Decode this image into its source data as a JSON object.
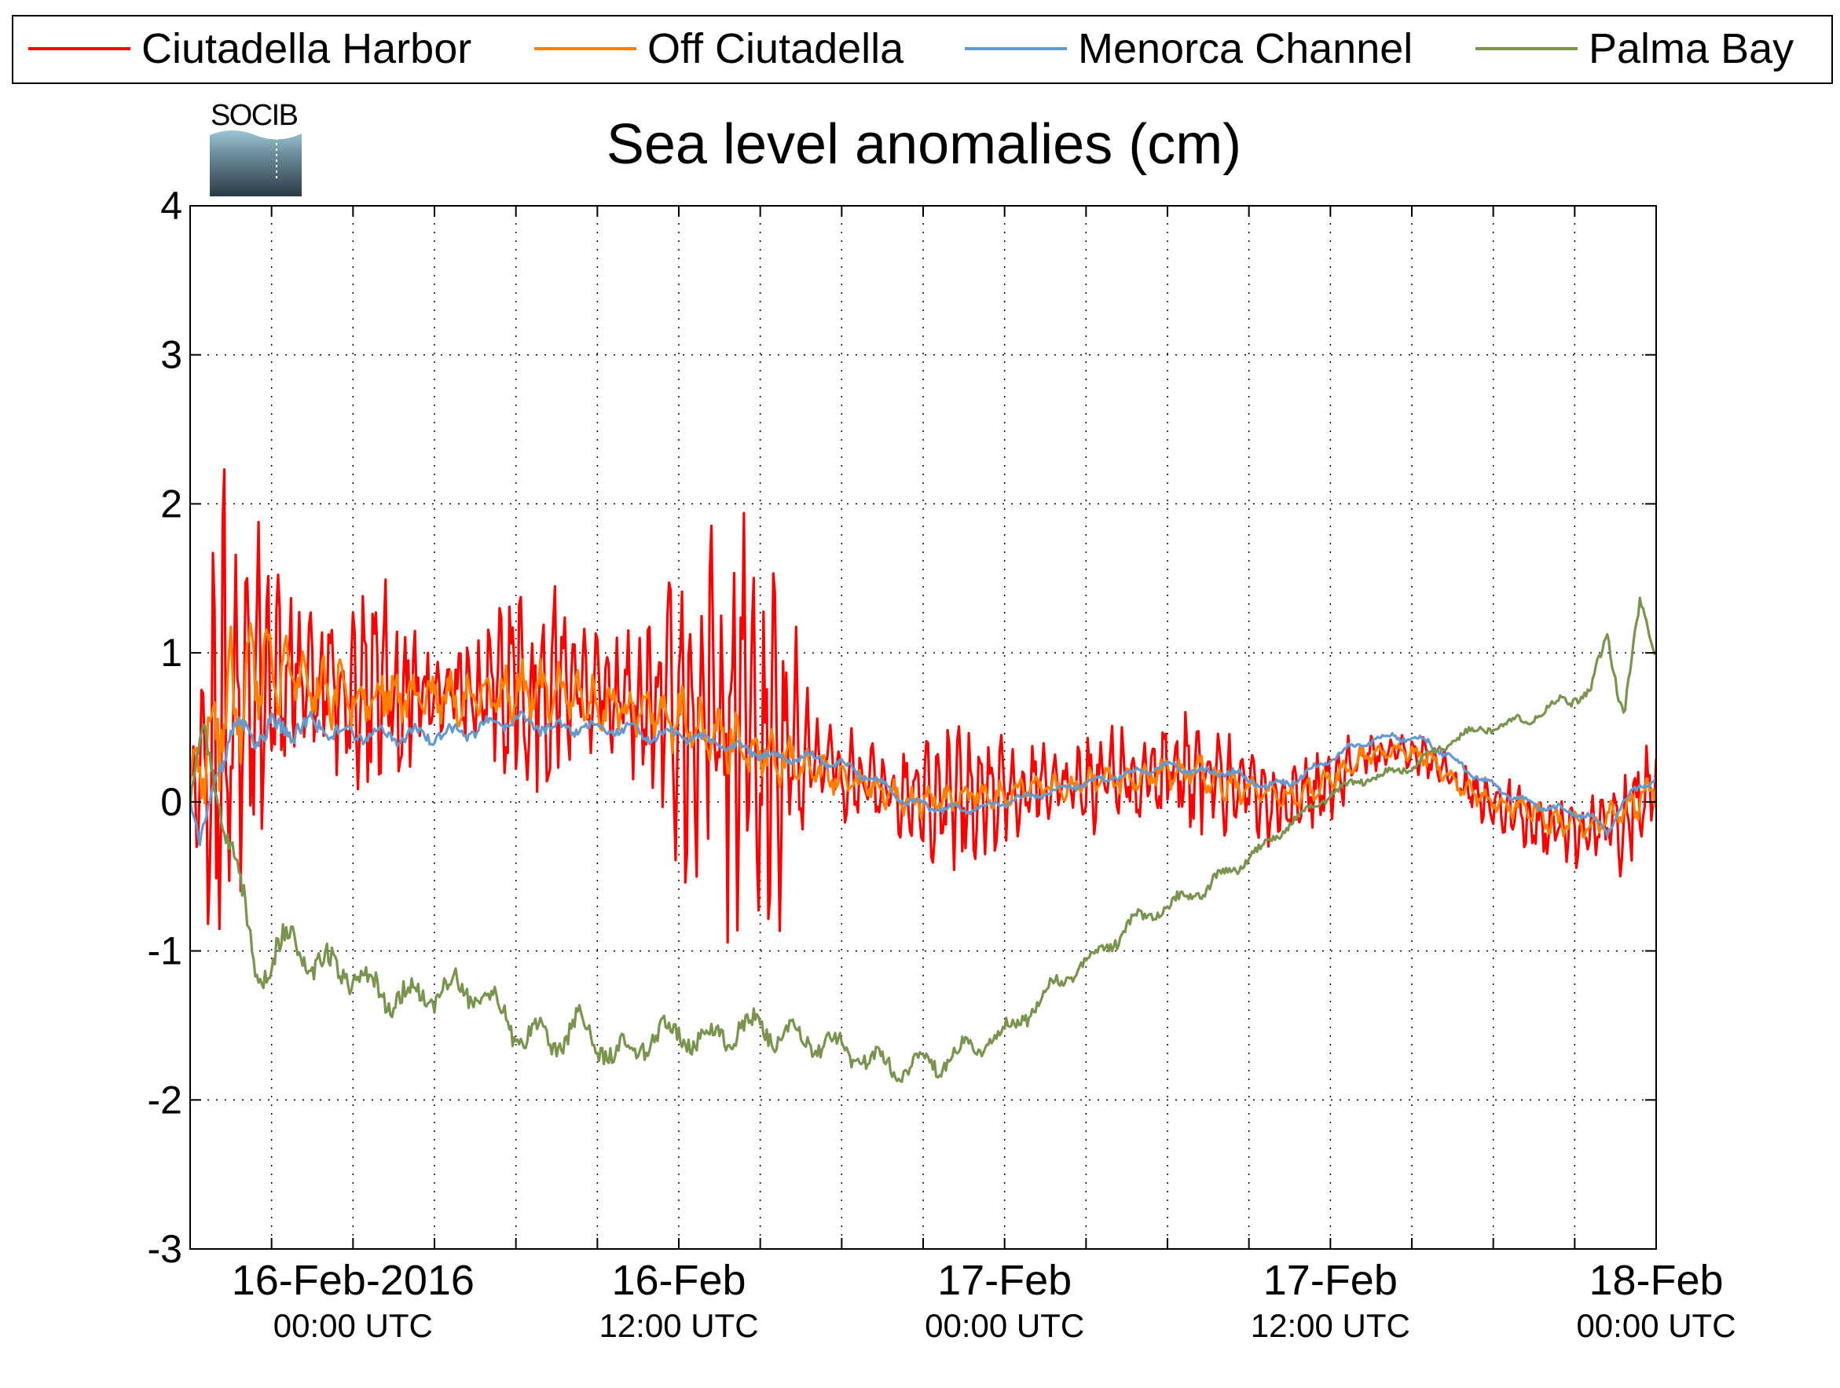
{
  "chart_data": {
    "type": "line",
    "title": "Sea level anomalies (cm)",
    "logo_text": "SOCIB",
    "xlabel": "",
    "ylabel": "",
    "ylim": [
      -3,
      4
    ],
    "y_ticks": [
      -3,
      -2,
      -1,
      0,
      1,
      2,
      3,
      4
    ],
    "y_tick_labels": [
      "-3",
      "-2",
      "-1",
      "0",
      "1",
      "2",
      "3",
      "4"
    ],
    "x_range_hours": [
      -5,
      35
    ],
    "x_ticks": [
      {
        "hour": 0,
        "date": "16-Feb-2016",
        "time": "00:00 UTC"
      },
      {
        "hour": 10,
        "date": "16-Feb",
        "time": "12:00 UTC"
      },
      {
        "hour": 20,
        "date": "17-Feb",
        "time": "00:00 UTC"
      },
      {
        "hour": 30,
        "date": "17-Feb",
        "time": "12:00 UTC"
      },
      {
        "hour": 40,
        "date": "18-Feb",
        "time": "00:00 UTC"
      }
    ],
    "grid": true,
    "legend_position": "top",
    "series": [
      {
        "name": "Ciutadella Harbor",
        "color": "#ff0000",
        "mean": [
          [
            -5,
            0.1
          ],
          [
            -4,
            0.5
          ],
          [
            -3,
            0.85
          ],
          [
            -2,
            0.9
          ],
          [
            -1,
            0.8
          ],
          [
            0,
            0.75
          ],
          [
            1,
            0.75
          ],
          [
            2,
            0.7
          ],
          [
            3,
            0.75
          ],
          [
            4,
            0.7
          ],
          [
            5,
            0.8
          ],
          [
            6,
            0.85
          ],
          [
            7,
            0.75
          ],
          [
            8,
            0.7
          ],
          [
            9,
            0.55
          ],
          [
            10,
            0.6
          ],
          [
            11,
            0.55
          ],
          [
            12,
            0.45
          ],
          [
            13,
            0.35
          ],
          [
            14,
            0.3
          ],
          [
            15,
            0.2
          ],
          [
            16,
            0.1
          ],
          [
            17,
            0.05
          ],
          [
            18,
            0.0
          ],
          [
            19,
            0.05
          ],
          [
            20,
            0.1
          ],
          [
            21,
            0.1
          ],
          [
            22,
            0.1
          ],
          [
            23,
            0.15
          ],
          [
            24,
            0.15
          ],
          [
            25,
            0.2
          ],
          [
            26,
            0.2
          ],
          [
            27,
            0.1
          ],
          [
            28,
            0.0
          ],
          [
            29,
            0.0
          ],
          [
            30,
            0.15
          ],
          [
            31,
            0.3
          ],
          [
            32,
            0.35
          ],
          [
            33,
            0.3
          ],
          [
            34,
            0.1
          ],
          [
            35,
            0.0
          ],
          [
            36,
            -0.1
          ],
          [
            37,
            -0.2
          ],
          [
            38,
            -0.2
          ],
          [
            39,
            -0.1
          ],
          [
            40,
            0.1
          ]
        ],
        "amplitude": [
          [
            -5,
            0.3
          ],
          [
            -4,
            1.9
          ],
          [
            -3,
            1.2
          ],
          [
            -2,
            0.9
          ],
          [
            -1,
            0.5
          ],
          [
            0,
            0.7
          ],
          [
            1,
            1.0
          ],
          [
            2,
            0.5
          ],
          [
            3,
            0.4
          ],
          [
            4,
            0.5
          ],
          [
            5,
            0.9
          ],
          [
            6,
            0.9
          ],
          [
            7,
            0.45
          ],
          [
            8,
            0.4
          ],
          [
            9,
            0.7
          ],
          [
            10,
            1.3
          ],
          [
            11,
            1.4
          ],
          [
            12,
            1.7
          ],
          [
            13,
            1.6
          ],
          [
            14,
            0.6
          ],
          [
            15,
            0.35
          ],
          [
            16,
            0.3
          ],
          [
            17,
            0.35
          ],
          [
            18,
            0.5
          ],
          [
            19,
            0.5
          ],
          [
            20,
            0.45
          ],
          [
            21,
            0.3
          ],
          [
            22,
            0.35
          ],
          [
            23,
            0.4
          ],
          [
            24,
            0.35
          ],
          [
            25,
            0.4
          ],
          [
            26,
            0.45
          ],
          [
            27,
            0.35
          ],
          [
            28,
            0.3
          ],
          [
            29,
            0.3
          ],
          [
            30,
            0.3
          ],
          [
            31,
            0.15
          ],
          [
            32,
            0.1
          ],
          [
            33,
            0.15
          ],
          [
            34,
            0.15
          ],
          [
            35,
            0.2
          ],
          [
            36,
            0.25
          ],
          [
            37,
            0.25
          ],
          [
            38,
            0.3
          ],
          [
            39,
            0.4
          ],
          [
            40,
            0.4
          ]
        ]
      },
      {
        "name": "Off Ciutadella",
        "color": "#ff7f00",
        "mean": [
          [
            -5,
            0.1
          ],
          [
            -4,
            0.6
          ],
          [
            -3,
            0.85
          ],
          [
            -2,
            0.85
          ],
          [
            -1,
            0.75
          ],
          [
            0,
            0.7
          ],
          [
            1,
            0.75
          ],
          [
            2,
            0.7
          ],
          [
            3,
            0.7
          ],
          [
            4,
            0.7
          ],
          [
            5,
            0.75
          ],
          [
            6,
            0.75
          ],
          [
            7,
            0.7
          ],
          [
            8,
            0.65
          ],
          [
            9,
            0.6
          ],
          [
            10,
            0.55
          ],
          [
            11,
            0.45
          ],
          [
            12,
            0.35
          ],
          [
            13,
            0.3
          ],
          [
            14,
            0.25
          ],
          [
            15,
            0.15
          ],
          [
            16,
            0.1
          ],
          [
            17,
            0.0
          ],
          [
            18,
            0.0
          ],
          [
            19,
            0.05
          ],
          [
            20,
            0.05
          ],
          [
            21,
            0.1
          ],
          [
            22,
            0.1
          ],
          [
            23,
            0.15
          ],
          [
            24,
            0.15
          ],
          [
            25,
            0.2
          ],
          [
            26,
            0.2
          ],
          [
            27,
            0.1
          ],
          [
            28,
            0.05
          ],
          [
            29,
            0.05
          ],
          [
            30,
            0.15
          ],
          [
            31,
            0.3
          ],
          [
            32,
            0.35
          ],
          [
            33,
            0.3
          ],
          [
            34,
            0.1
          ],
          [
            35,
            0.0
          ],
          [
            36,
            -0.05
          ],
          [
            37,
            -0.15
          ],
          [
            38,
            -0.15
          ],
          [
            39,
            -0.05
          ],
          [
            40,
            0.1
          ]
        ],
        "amplitude": [
          [
            -5,
            0.2
          ],
          [
            -4,
            0.6
          ],
          [
            -3,
            0.4
          ],
          [
            -2,
            0.3
          ],
          [
            -1,
            0.25
          ],
          [
            0,
            0.25
          ],
          [
            1,
            0.25
          ],
          [
            2,
            0.2
          ],
          [
            3,
            0.2
          ],
          [
            4,
            0.2
          ],
          [
            5,
            0.25
          ],
          [
            6,
            0.25
          ],
          [
            7,
            0.2
          ],
          [
            8,
            0.2
          ],
          [
            9,
            0.2
          ],
          [
            10,
            0.25
          ],
          [
            11,
            0.25
          ],
          [
            12,
            0.25
          ],
          [
            13,
            0.2
          ],
          [
            14,
            0.15
          ],
          [
            15,
            0.12
          ],
          [
            16,
            0.12
          ],
          [
            17,
            0.12
          ],
          [
            18,
            0.12
          ],
          [
            19,
            0.12
          ],
          [
            20,
            0.12
          ],
          [
            21,
            0.1
          ],
          [
            22,
            0.1
          ],
          [
            23,
            0.12
          ],
          [
            24,
            0.12
          ],
          [
            25,
            0.12
          ],
          [
            26,
            0.15
          ],
          [
            27,
            0.12
          ],
          [
            28,
            0.1
          ],
          [
            29,
            0.1
          ],
          [
            30,
            0.1
          ],
          [
            31,
            0.08
          ],
          [
            32,
            0.05
          ],
          [
            33,
            0.08
          ],
          [
            34,
            0.08
          ],
          [
            35,
            0.08
          ],
          [
            36,
            0.1
          ],
          [
            37,
            0.1
          ],
          [
            38,
            0.1
          ],
          [
            39,
            0.15
          ],
          [
            40,
            0.15
          ]
        ]
      },
      {
        "name": "Menorca Channel",
        "color": "#6699cc",
        "mean": [
          [
            -5,
            0.0
          ],
          [
            -4.7,
            -0.3
          ],
          [
            -4.2,
            0.2
          ],
          [
            -3.5,
            0.5
          ],
          [
            -3,
            0.45
          ],
          [
            -2,
            0.5
          ],
          [
            -1,
            0.5
          ],
          [
            0,
            0.45
          ],
          [
            1,
            0.45
          ],
          [
            2,
            0.45
          ],
          [
            3,
            0.45
          ],
          [
            4,
            0.5
          ],
          [
            5,
            0.55
          ],
          [
            6,
            0.5
          ],
          [
            7,
            0.5
          ],
          [
            8,
            0.5
          ],
          [
            9,
            0.45
          ],
          [
            10,
            0.45
          ],
          [
            11,
            0.4
          ],
          [
            12,
            0.35
          ],
          [
            13,
            0.3
          ],
          [
            14,
            0.3
          ],
          [
            15,
            0.25
          ],
          [
            16,
            0.15
          ],
          [
            17,
            0.0
          ],
          [
            18,
            -0.05
          ],
          [
            19,
            -0.05
          ],
          [
            20,
            0.0
          ],
          [
            21,
            0.05
          ],
          [
            22,
            0.1
          ],
          [
            23,
            0.15
          ],
          [
            24,
            0.2
          ],
          [
            25,
            0.25
          ],
          [
            26,
            0.2
          ],
          [
            27,
            0.2
          ],
          [
            28,
            0.1
          ],
          [
            29,
            0.15
          ],
          [
            30,
            0.3
          ],
          [
            31,
            0.4
          ],
          [
            32,
            0.45
          ],
          [
            33,
            0.4
          ],
          [
            34,
            0.25
          ],
          [
            35,
            0.1
          ],
          [
            36,
            0.0
          ],
          [
            37,
            -0.05
          ],
          [
            38,
            -0.1
          ],
          [
            38.5,
            -0.2
          ],
          [
            39,
            0.0
          ],
          [
            39.5,
            0.1
          ],
          [
            40,
            0.15
          ]
        ],
        "amplitude": [
          [
            -5,
            0.05
          ],
          [
            -3,
            0.15
          ],
          [
            0,
            0.08
          ],
          [
            10,
            0.06
          ],
          [
            20,
            0.04
          ],
          [
            30,
            0.04
          ],
          [
            40,
            0.04
          ]
        ]
      },
      {
        "name": "Palma Bay",
        "color": "#7a9450",
        "mean": [
          [
            -5,
            0.0
          ],
          [
            -4.6,
            0.5
          ],
          [
            -4.2,
            0.1
          ],
          [
            -3.6,
            -0.4
          ],
          [
            -3,
            -1.2
          ],
          [
            -2.5,
            -1.0
          ],
          [
            -2,
            -0.95
          ],
          [
            -1,
            -1.1
          ],
          [
            0,
            -1.15
          ],
          [
            1,
            -1.3
          ],
          [
            2,
            -1.3
          ],
          [
            3,
            -1.25
          ],
          [
            4,
            -1.3
          ],
          [
            5,
            -1.55
          ],
          [
            6,
            -1.6
          ],
          [
            7,
            -1.5
          ],
          [
            8,
            -1.7
          ],
          [
            9,
            -1.6
          ],
          [
            10,
            -1.55
          ],
          [
            11,
            -1.6
          ],
          [
            12,
            -1.5
          ],
          [
            13,
            -1.55
          ],
          [
            14,
            -1.6
          ],
          [
            15,
            -1.65
          ],
          [
            16,
            -1.75
          ],
          [
            17,
            -1.8
          ],
          [
            18,
            -1.75
          ],
          [
            19,
            -1.65
          ],
          [
            20,
            -1.55
          ],
          [
            21,
            -1.35
          ],
          [
            22,
            -1.15
          ],
          [
            23,
            -1.0
          ],
          [
            24,
            -0.8
          ],
          [
            25,
            -0.7
          ],
          [
            26,
            -0.6
          ],
          [
            27,
            -0.45
          ],
          [
            28,
            -0.3
          ],
          [
            29,
            -0.1
          ],
          [
            30,
            0.05
          ],
          [
            31,
            0.15
          ],
          [
            32,
            0.2
          ],
          [
            33,
            0.3
          ],
          [
            34,
            0.45
          ],
          [
            35,
            0.5
          ],
          [
            36,
            0.55
          ],
          [
            37,
            0.65
          ],
          [
            38,
            0.75
          ],
          [
            38.5,
            1.1
          ],
          [
            39,
            0.6
          ],
          [
            39.5,
            1.3
          ],
          [
            40,
            1.0
          ],
          [
            41,
            1.2
          ]
        ],
        "amplitude": [
          [
            -5,
            0.1
          ],
          [
            -3,
            0.2
          ],
          [
            0,
            0.15
          ],
          [
            10,
            0.15
          ],
          [
            20,
            0.1
          ],
          [
            30,
            0.05
          ],
          [
            35,
            0.04
          ],
          [
            40,
            0.1
          ],
          [
            41,
            0.1
          ]
        ]
      }
    ]
  }
}
